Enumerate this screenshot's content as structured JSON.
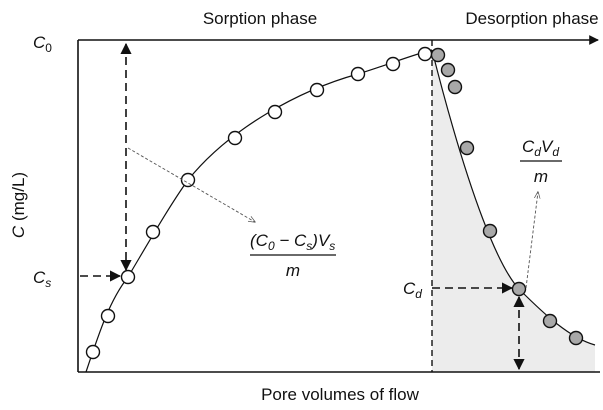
{
  "header": {
    "sorption": "Sorption phase",
    "desorption": "Desorption phase"
  },
  "axes": {
    "y_label": {
      "symbol": "C",
      "unit": " (mg/L)"
    },
    "x_label": "Pore volumes of flow"
  },
  "labels": {
    "c0": {
      "symbol": "C",
      "sub": "0"
    },
    "cs": {
      "symbol": "C",
      "sub": "s"
    },
    "cd": {
      "symbol": "C",
      "sub": "d"
    }
  },
  "formulas": {
    "sorption": {
      "numerator": [
        {
          "text": "(C"
        },
        {
          "sub": "0"
        },
        {
          "text": " − C"
        },
        {
          "sub": "s"
        },
        {
          "text": ")V"
        },
        {
          "sub": "s"
        }
      ],
      "denominator": "m"
    },
    "desorption": {
      "numerator": [
        {
          "text": "C"
        },
        {
          "sub": "d"
        },
        {
          "text": "V"
        },
        {
          "sub": "d"
        }
      ],
      "denominator": "m"
    }
  }
}
